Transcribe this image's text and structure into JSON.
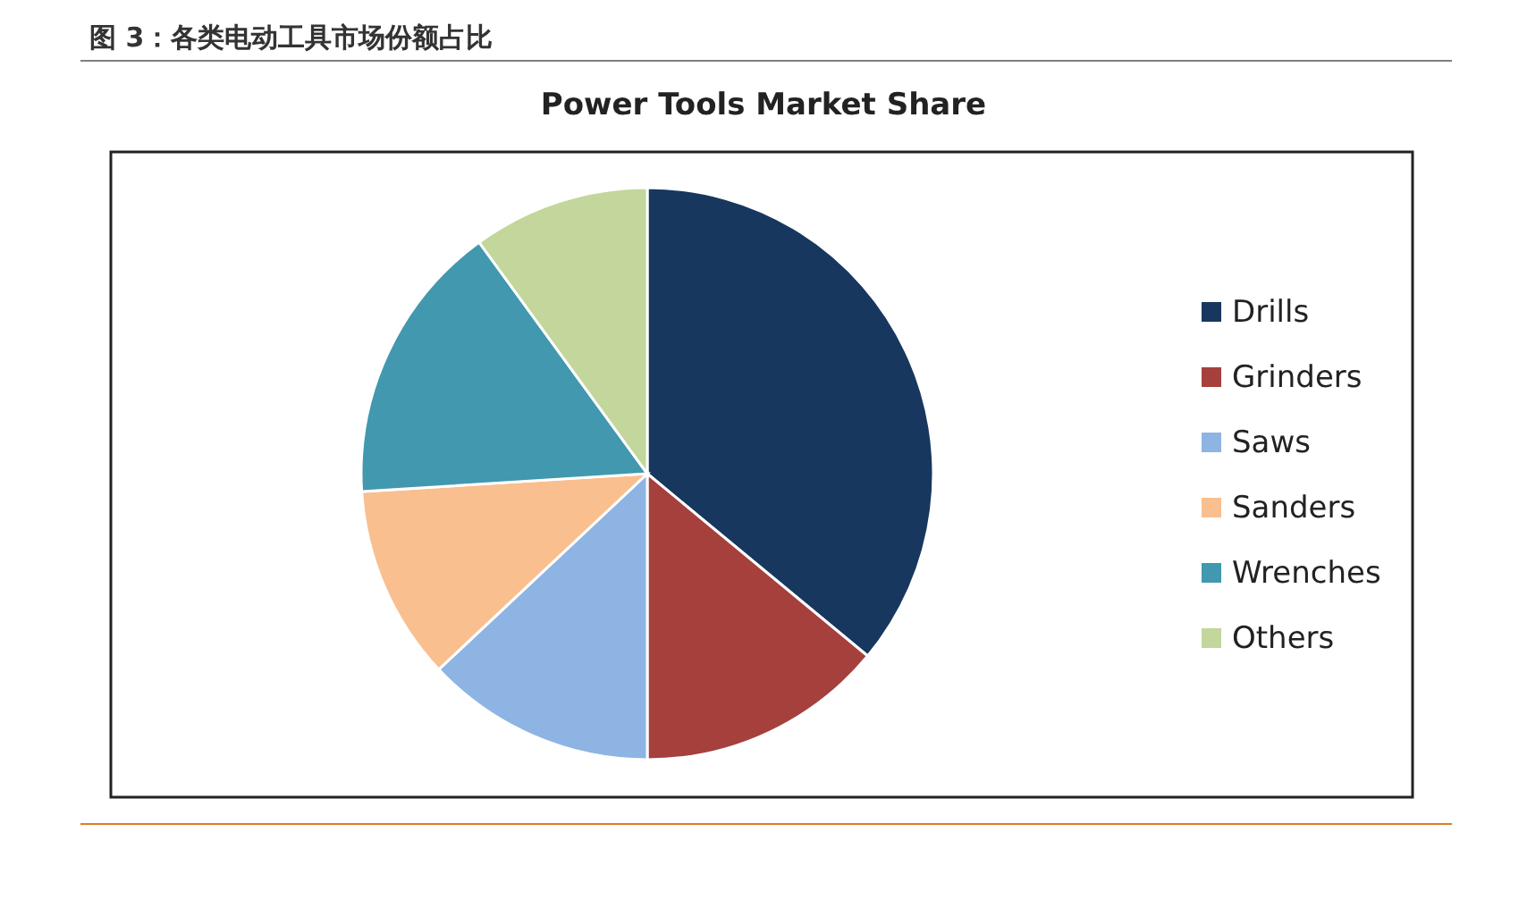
{
  "chart_data": {
    "type": "pie",
    "title": "图 3：各类电动工具市场份额占比",
    "subtitle": "Power Tools Market Share",
    "categories": [
      "Drills",
      "Grinders",
      "Saws",
      "Sanders",
      "Wrenches",
      "Others"
    ],
    "values": [
      36,
      14,
      13,
      11,
      16,
      10
    ],
    "colors": [
      "#17375e",
      "#a5403d",
      "#8eb4e3",
      "#f9bf8f",
      "#4198af",
      "#c3d69b"
    ],
    "legend": "right"
  }
}
